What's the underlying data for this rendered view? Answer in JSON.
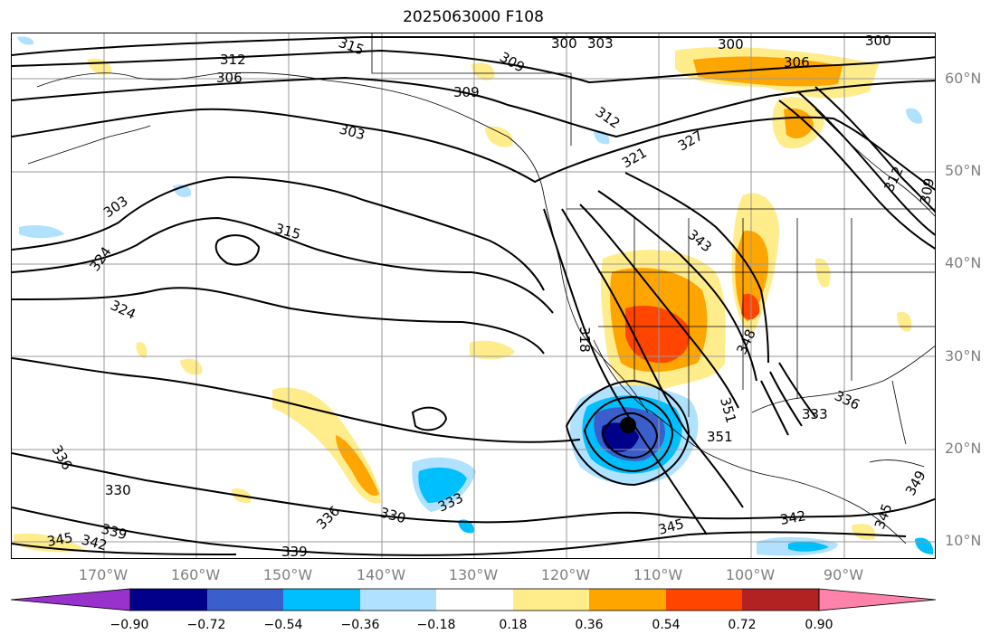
{
  "title": "2025063000 F108",
  "lat_labels": [
    "60°N",
    "50°N",
    "40°N",
    "30°N",
    "20°N",
    "10°N"
  ],
  "lon_labels": [
    "170°W",
    "160°W",
    "150°W",
    "140°W",
    "130°W",
    "120°W",
    "110°W",
    "100°W",
    "90°W"
  ],
  "contour_labels": [
    "315",
    "312",
    "306",
    "309",
    "300",
    "303",
    "300",
    "306",
    "300",
    "309",
    "312",
    "303",
    "321",
    "327",
    "312",
    "309",
    "303",
    "315",
    "324",
    "324",
    "343",
    "348",
    "318",
    "351",
    "351",
    "336",
    "333",
    "336",
    "330",
    "336",
    "330",
    "333",
    "339",
    "342",
    "345",
    "339",
    "345",
    "342",
    "349",
    "345"
  ],
  "colorbar": {
    "ticks": [
      "−0.90",
      "−0.72",
      "−0.54",
      "−0.36",
      "−0.18",
      "0.18",
      "0.36",
      "0.54",
      "0.72",
      "0.90"
    ],
    "colors": [
      "#9932cc",
      "#00008b",
      "#3a5fcd",
      "#00bfff",
      "#b0e2ff",
      "#ffffff",
      "#ffec8b",
      "#ffa500",
      "#ff4500",
      "#b22222",
      "#ff82ab"
    ]
  },
  "colors": {
    "contour": "#000000",
    "coast": "#000000",
    "grid": "#999999",
    "axis_label": "#808080"
  }
}
